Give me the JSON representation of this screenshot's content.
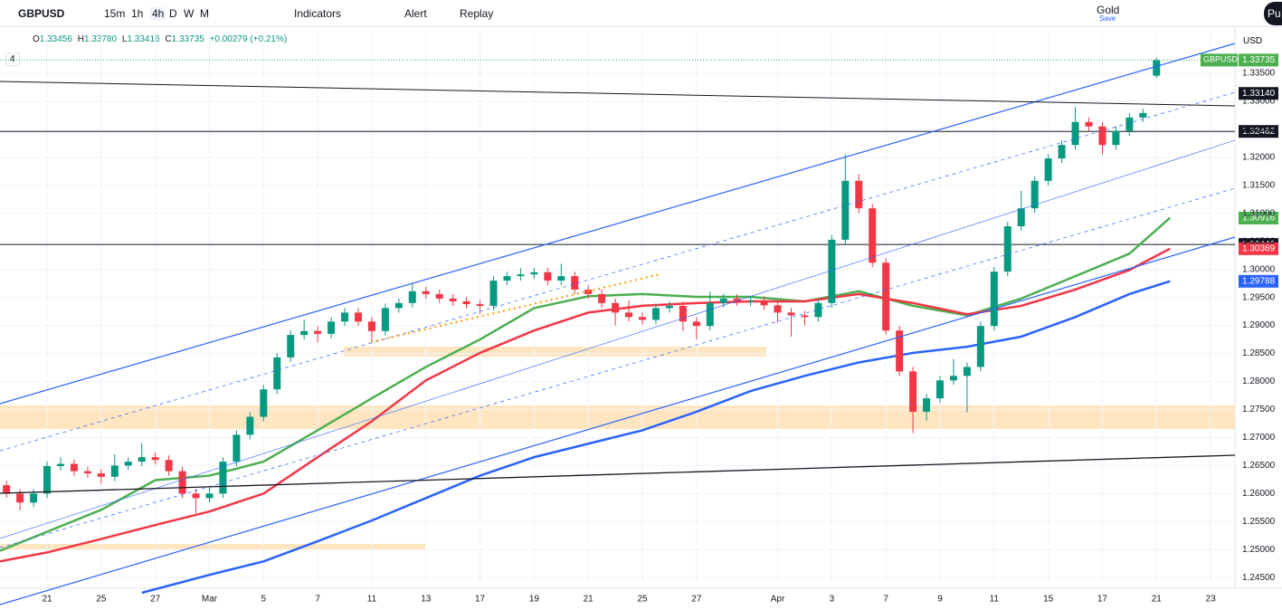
{
  "toolbar": {
    "symbol": "GBPUSD",
    "intervals": [
      "15m",
      "1h",
      "4h",
      "D",
      "W",
      "M"
    ],
    "indicators": "Indicators",
    "alert": "Alert",
    "replay": "Replay",
    "layout": "Gold",
    "save": "Save",
    "publish": "Pu"
  },
  "header": {
    "ohlc": [
      {
        "label": "O",
        "value": "1.33456"
      },
      {
        "label": "H",
        "value": "1.33780"
      },
      {
        "label": "L",
        "value": "1.33416"
      },
      {
        "label": "C",
        "value": "1.33735"
      }
    ],
    "change": "+0.00279 (+0.21%)",
    "indicators": "4",
    "currency": "USD"
  },
  "chart_data": {
    "type": "candlestick",
    "up_color": "#089981",
    "down_color": "#f23645",
    "xlim": [
      -1.74,
      43.9
    ],
    "ylim": [
      1.2423,
      1.3429
    ],
    "xticks": [
      {
        "value": 0,
        "label": "21"
      },
      {
        "value": 2,
        "label": "25"
      },
      {
        "value": 4,
        "label": "27"
      },
      {
        "value": 6,
        "label": "Mar"
      },
      {
        "value": 8,
        "label": "5"
      },
      {
        "value": 10,
        "label": "7"
      },
      {
        "value": 12,
        "label": "11"
      },
      {
        "value": 14,
        "label": "13"
      },
      {
        "value": 16,
        "label": "17"
      },
      {
        "value": 18,
        "label": "19"
      },
      {
        "value": 20,
        "label": "21"
      },
      {
        "value": 22,
        "label": "25"
      },
      {
        "value": 24,
        "label": "27"
      },
      {
        "value": 27,
        "label": "Apr"
      },
      {
        "value": 29,
        "label": "3"
      },
      {
        "value": 31,
        "label": "7"
      },
      {
        "value": 33,
        "label": "9"
      },
      {
        "value": 35,
        "label": "11"
      },
      {
        "value": 37,
        "label": "15"
      },
      {
        "value": 39,
        "label": "17"
      },
      {
        "value": 41,
        "label": "21"
      },
      {
        "value": 43,
        "label": "23"
      }
    ],
    "yticks": [
      {
        "value": 1.245,
        "label": "1.24500"
      },
      {
        "value": 1.25,
        "label": "1.25000"
      },
      {
        "value": 1.255,
        "label": "1.25500"
      },
      {
        "value": 1.26,
        "label": "1.26000"
      },
      {
        "value": 1.265,
        "label": "1.26500"
      },
      {
        "value": 1.27,
        "label": "1.27000"
      },
      {
        "value": 1.275,
        "label": "1.27500"
      },
      {
        "value": 1.28,
        "label": "1.28000"
      },
      {
        "value": 1.285,
        "label": "1.28500"
      },
      {
        "value": 1.29,
        "label": "1.29000"
      },
      {
        "value": 1.295,
        "label": "1.29500"
      },
      {
        "value": 1.3,
        "label": "1.30000"
      },
      {
        "value": 1.305,
        "label": "1.30500"
      },
      {
        "value": 1.31,
        "label": "1.31000"
      },
      {
        "value": 1.315,
        "label": "1.31500"
      },
      {
        "value": 1.32,
        "label": "1.32000"
      },
      {
        "value": 1.325,
        "label": "1.32500"
      },
      {
        "value": 1.33,
        "label": "1.33000"
      },
      {
        "value": 1.335,
        "label": "1.33500"
      }
    ],
    "x": [
      -1.5,
      -1,
      -0.5,
      0,
      0.5,
      1,
      1.5,
      2,
      2.5,
      3,
      3.5,
      4,
      4.5,
      5,
      5.5,
      6,
      6.5,
      7,
      7.5,
      8,
      8.5,
      9,
      9.5,
      10,
      10.5,
      11,
      11.5,
      12,
      12.5,
      13,
      13.5,
      14,
      14.5,
      15,
      15.5,
      16,
      16.5,
      17,
      17.5,
      18,
      18.5,
      19,
      19.5,
      20,
      20.5,
      21,
      21.5,
      22,
      22.5,
      23,
      23.5,
      24,
      24.5,
      25,
      25.5,
      26,
      26.5,
      27,
      27.5,
      28,
      28.5,
      29,
      29.5,
      30,
      30.5,
      31,
      31.5,
      32,
      32.5,
      33,
      33.5,
      34,
      34.5,
      35,
      35.5,
      36,
      36.5,
      37,
      37.5,
      38,
      38.5,
      39,
      39.5,
      40,
      40.5,
      41
    ],
    "open": [
      1.2615,
      1.26,
      1.2584,
      1.26,
      1.2649,
      1.2653,
      1.264,
      1.2636,
      1.263,
      1.265,
      1.2657,
      1.2665,
      1.266,
      1.264,
      1.26,
      1.2592,
      1.26,
      1.2657,
      1.2705,
      1.2737,
      1.2786,
      1.2843,
      1.2883,
      1.289,
      1.2885,
      1.2907,
      1.2923,
      1.2907,
      1.289,
      1.2931,
      1.294,
      1.2961,
      1.2956,
      1.2948,
      1.2943,
      1.2938,
      1.2935,
      1.298,
      1.2988,
      1.2991,
      1.2995,
      1.298,
      1.2988,
      1.2964,
      1.2956,
      1.294,
      1.2923,
      1.2915,
      1.291,
      1.2931,
      1.2935,
      1.2907,
      1.2899,
      1.294,
      1.2948,
      1.2943,
      1.2944,
      1.2936,
      1.2923,
      1.2918,
      1.2915,
      1.294,
      1.3053,
      1.3158,
      1.3109,
      1.3012,
      1.2891,
      1.2818,
      1.2746,
      1.277,
      1.2802,
      1.281,
      1.2826,
      1.2899,
      1.2996,
      1.3077,
      1.3109,
      1.3158,
      1.3198,
      1.3222,
      1.3263,
      1.3255,
      1.3222,
      1.3247,
      1.3271,
      1.33456
    ],
    "high": [
      1.2623,
      1.2608,
      1.2608,
      1.2657,
      1.2665,
      1.2661,
      1.2648,
      1.2644,
      1.267,
      1.2665,
      1.269,
      1.2673,
      1.2668,
      1.2648,
      1.2608,
      1.261,
      1.2665,
      1.2713,
      1.2745,
      1.2794,
      1.2851,
      1.2891,
      1.291,
      1.2898,
      1.2915,
      1.2931,
      1.2931,
      1.2915,
      1.2939,
      1.2948,
      1.2975,
      1.2969,
      1.2964,
      1.2956,
      1.2951,
      1.2946,
      1.2988,
      1.2996,
      1.3002,
      1.3003,
      1.3003,
      1.301,
      1.2996,
      1.2972,
      1.2964,
      1.2948,
      1.2945,
      1.2923,
      1.2939,
      1.2943,
      1.2943,
      1.2915,
      1.296,
      1.2956,
      1.2956,
      1.2952,
      1.2952,
      1.2944,
      1.2931,
      1.2926,
      1.2948,
      1.3061,
      1.3205,
      1.317,
      1.3117,
      1.302,
      1.2899,
      1.2826,
      1.2778,
      1.281,
      1.284,
      1.2834,
      1.2907,
      1.3004,
      1.3085,
      1.314,
      1.3166,
      1.3206,
      1.323,
      1.329,
      1.3271,
      1.3263,
      1.3255,
      1.3279,
      1.3287,
      1.3378
    ],
    "low": [
      1.2592,
      1.257,
      1.2576,
      1.2592,
      1.2641,
      1.2632,
      1.2628,
      1.2618,
      1.2622,
      1.2642,
      1.2649,
      1.2652,
      1.2632,
      1.2592,
      1.2565,
      1.2584,
      1.2592,
      1.2649,
      1.2697,
      1.2729,
      1.2778,
      1.2835,
      1.2875,
      1.287,
      1.2877,
      1.2899,
      1.2899,
      1.287,
      1.2882,
      1.2923,
      1.2932,
      1.2948,
      1.294,
      1.2935,
      1.293,
      1.292,
      1.2927,
      1.2972,
      1.298,
      1.2983,
      1.2972,
      1.2972,
      1.2956,
      1.2948,
      1.2932,
      1.29,
      1.2907,
      1.2902,
      1.2902,
      1.2923,
      1.289,
      1.2875,
      1.2891,
      1.2932,
      1.2935,
      1.2935,
      1.2928,
      1.2905,
      1.288,
      1.29,
      1.2907,
      1.2932,
      1.3045,
      1.31,
      1.3004,
      1.2883,
      1.281,
      1.2708,
      1.273,
      1.2762,
      1.2794,
      1.2745,
      1.2818,
      1.2891,
      1.2988,
      1.3069,
      1.3101,
      1.315,
      1.319,
      1.3214,
      1.3247,
      1.3205,
      1.3214,
      1.3239,
      1.3263,
      1.33416
    ],
    "close": [
      1.26,
      1.2584,
      1.26,
      1.2649,
      1.2653,
      1.264,
      1.2636,
      1.263,
      1.265,
      1.2657,
      1.2665,
      1.266,
      1.264,
      1.26,
      1.2592,
      1.26,
      1.2657,
      1.2705,
      1.2737,
      1.2786,
      1.2843,
      1.2883,
      1.289,
      1.2885,
      1.2907,
      1.2923,
      1.2907,
      1.289,
      1.2931,
      1.294,
      1.2961,
      1.2956,
      1.2948,
      1.2943,
      1.2938,
      1.2935,
      1.298,
      1.2988,
      1.2991,
      1.2995,
      1.298,
      1.2988,
      1.2964,
      1.2956,
      1.294,
      1.2923,
      1.2915,
      1.291,
      1.2931,
      1.2935,
      1.2907,
      1.2899,
      1.294,
      1.2948,
      1.2943,
      1.2944,
      1.2936,
      1.2923,
      1.2918,
      1.2915,
      1.294,
      1.3053,
      1.3158,
      1.3109,
      1.3012,
      1.2891,
      1.2818,
      1.2746,
      1.277,
      1.2802,
      1.281,
      1.2826,
      1.2899,
      1.2996,
      1.3077,
      1.3109,
      1.3158,
      1.3198,
      1.3222,
      1.3263,
      1.3255,
      1.3222,
      1.3247,
      1.3271,
      1.3279,
      1.33735
    ],
    "lines": [
      {
        "color": "#4caf50",
        "x": [
          -1.74,
          0,
          2,
          4,
          6,
          8,
          10,
          12,
          14,
          16,
          18,
          20,
          22,
          24,
          26,
          28,
          30,
          32,
          34,
          36,
          38,
          40,
          41.5
        ],
        "values": [
          1.2498,
          1.2532,
          1.2571,
          1.2624,
          1.2632,
          1.2657,
          1.2713,
          1.277,
          1.2826,
          1.2875,
          1.2931,
          1.2952,
          1.2956,
          1.2951,
          1.2951,
          1.2943,
          1.2961,
          1.2935,
          1.2918,
          1.2948,
          1.2988,
          1.3028,
          1.3092
        ]
      },
      {
        "color": "#f23645",
        "x": [
          -1.74,
          0,
          2,
          4,
          6,
          8,
          10,
          12,
          14,
          16,
          18,
          20,
          22,
          24,
          26,
          28,
          30,
          32,
          34,
          36,
          38,
          40,
          41.5
        ],
        "values": [
          1.2479,
          1.2495,
          1.2519,
          1.2544,
          1.2568,
          1.26,
          1.2665,
          1.2729,
          1.2802,
          1.2851,
          1.2891,
          1.2923,
          1.2935,
          1.294,
          1.2943,
          1.2943,
          1.2956,
          1.294,
          1.292,
          1.2935,
          1.2964,
          1.2999,
          1.3037
        ]
      },
      {
        "color": "#2962ff",
        "x": [
          3.5,
          6,
          8,
          10,
          12,
          14,
          16,
          18,
          20,
          22,
          24,
          26,
          28,
          30,
          32,
          34,
          36,
          38,
          40,
          41.5
        ],
        "values": [
          1.2423,
          1.2455,
          1.2479,
          1.2515,
          1.2552,
          1.2592,
          1.2632,
          1.2665,
          1.2689,
          1.2713,
          1.2746,
          1.2783,
          1.281,
          1.2834,
          1.2851,
          1.2862,
          1.288,
          1.2915,
          1.2956,
          1.2979
        ]
      }
    ],
    "horizontal_lines": [
      {
        "value": 1.32462,
        "color": "#131722"
      },
      {
        "value": 1.30445,
        "color": "#131722"
      }
    ],
    "last_price": {
      "name": "GBPUSD",
      "value": 1.33735,
      "label": "1.33735",
      "color": "#4caf50"
    },
    "price_labels": [
      {
        "value": 1.3314,
        "label": "1.33140",
        "color": "#131722"
      },
      {
        "value": 1.32462,
        "label": "1.32462",
        "color": "#131722"
      },
      {
        "value": 1.30916,
        "label": "1.30916",
        "color": "#4caf50"
      },
      {
        "value": 1.30445,
        "label": "1.30445",
        "color": "#131722"
      },
      {
        "value": 1.30369,
        "label": "1.30369",
        "color": "#f23645"
      },
      {
        "value": 1.29788,
        "label": "1.29788",
        "color": "#2962ff"
      }
    ]
  }
}
